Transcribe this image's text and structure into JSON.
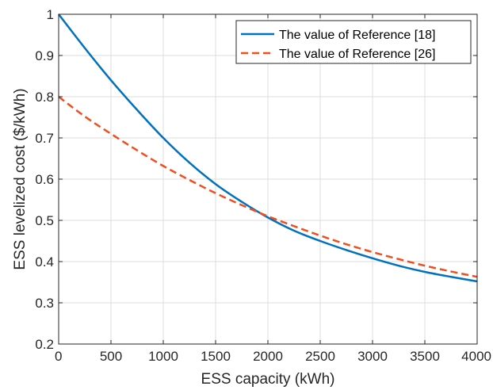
{
  "chart_data": {
    "type": "line",
    "title": "",
    "xlabel": "ESS capacity (kWh)",
    "ylabel": "ESS levelized cost ($/kWh)",
    "xlim": [
      0,
      4000
    ],
    "ylim": [
      0.2,
      1.0
    ],
    "x_ticks": [
      0,
      500,
      1000,
      1500,
      2000,
      2500,
      3000,
      3500,
      4000
    ],
    "y_ticks": [
      0.2,
      0.3,
      0.4,
      0.5,
      0.6,
      0.7,
      0.8,
      0.9,
      1.0
    ],
    "x_tick_labels": [
      "0",
      "500",
      "1000",
      "1500",
      "2000",
      "2500",
      "3000",
      "3500",
      "4000"
    ],
    "y_tick_labels": [
      "0.2",
      "0.3",
      "0.4",
      "0.5",
      "0.6",
      "0.7",
      "0.8",
      "0.9",
      "1"
    ],
    "grid": true,
    "legend_position": "top-right",
    "x": [
      0,
      250,
      500,
      750,
      1000,
      1250,
      1500,
      1750,
      2000,
      2250,
      2500,
      2750,
      3000,
      3250,
      3500,
      3750,
      4000
    ],
    "series": [
      {
        "name": "The value of Reference [18]",
        "color": "#0072BD",
        "style": "solid",
        "values": [
          1.0,
          0.918,
          0.84,
          0.768,
          0.7,
          0.64,
          0.588,
          0.545,
          0.507,
          0.475,
          0.45,
          0.428,
          0.408,
          0.39,
          0.375,
          0.363,
          0.352
        ]
      },
      {
        "name": "The value of Reference [26]",
        "color": "#F04E1E",
        "style": "dashed",
        "values": [
          0.8,
          0.752,
          0.71,
          0.67,
          0.632,
          0.598,
          0.566,
          0.537,
          0.51,
          0.486,
          0.463,
          0.442,
          0.423,
          0.406,
          0.39,
          0.376,
          0.363
        ]
      }
    ]
  }
}
